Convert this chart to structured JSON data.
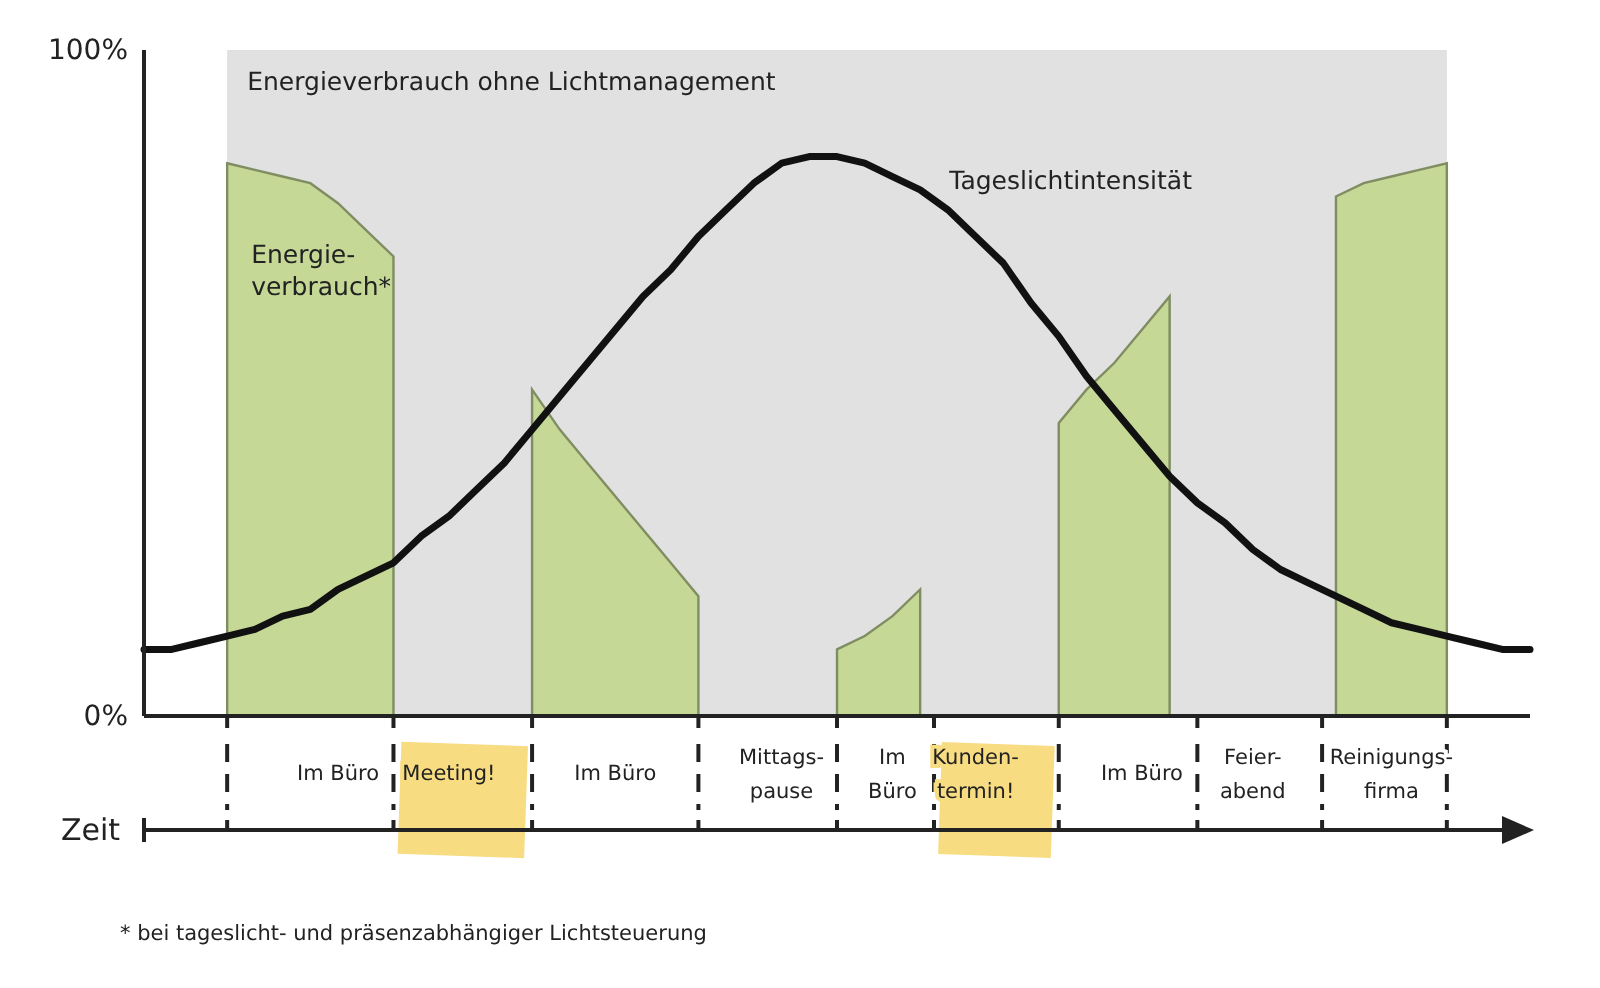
{
  "chart_data": {
    "type": "area",
    "xlabel": "Zeit",
    "ylim": [
      0,
      100
    ],
    "yticks": [
      {
        "value": 0,
        "label": "0%"
      },
      {
        "value": 100,
        "label": "100%"
      }
    ],
    "legend": false,
    "categories": [
      null,
      null,
      null,
      null,
      null,
      null,
      null,
      "Im Büro",
      null,
      null,
      null,
      "Meeting!",
      null,
      null,
      null,
      null,
      null,
      "Im Büro",
      null,
      null,
      null,
      null,
      null,
      "Mittags-\npause",
      null,
      null,
      null,
      "Im\nBüro",
      null,
      null,
      "Kunden-\ntermin!",
      null,
      null,
      null,
      null,
      null,
      "Im Büro",
      null,
      null,
      null,
      "Feier-\nabend",
      null,
      null,
      null,
      null,
      "Reinigungs-\nfirma",
      null,
      null,
      null,
      null,
      null
    ],
    "series": [
      {
        "name": "Energieverbrauch ohne Lichtmanagement",
        "color": "#e1e1e1",
        "values": [
          null,
          null,
          null,
          100,
          100,
          100,
          100,
          100,
          100,
          100,
          100,
          100,
          100,
          100,
          100,
          100,
          100,
          100,
          100,
          100,
          100,
          100,
          100,
          100,
          100,
          100,
          100,
          100,
          100,
          100,
          100,
          100,
          100,
          100,
          100,
          100,
          100,
          100,
          100,
          100,
          100,
          100,
          100,
          100,
          100,
          100,
          100,
          100,
          null,
          null,
          null
        ]
      },
      {
        "name": "Energie-\nverbrauch*",
        "color": "#c5d896",
        "values": [
          null,
          null,
          null,
          83,
          82,
          81,
          80,
          77,
          73,
          69,
          null,
          null,
          null,
          null,
          49,
          43,
          38,
          33,
          28,
          23,
          18,
          null,
          null,
          null,
          null,
          10,
          12,
          15,
          19,
          null,
          null,
          null,
          null,
          44,
          49,
          53,
          58,
          63,
          null,
          null,
          null,
          null,
          null,
          78,
          80,
          81,
          82,
          83,
          null,
          null,
          null
        ]
      },
      {
        "name": "Tageslichtintensität",
        "type": "line",
        "color": "#111111",
        "values": [
          10,
          10,
          11,
          12,
          13,
          15,
          16,
          19,
          21,
          23,
          27,
          30,
          34,
          38,
          43,
          48,
          53,
          58,
          63,
          67,
          72,
          76,
          80,
          83,
          84,
          84,
          83,
          81,
          79,
          76,
          72,
          68,
          62,
          57,
          51,
          46,
          41,
          36,
          32,
          29,
          25,
          22,
          20,
          18,
          16,
          14,
          13,
          12,
          11,
          10,
          10
        ]
      }
    ],
    "annotations": [
      "* bei tageslicht- und präsenzabhängiger Lichtsteuerung"
    ]
  }
}
